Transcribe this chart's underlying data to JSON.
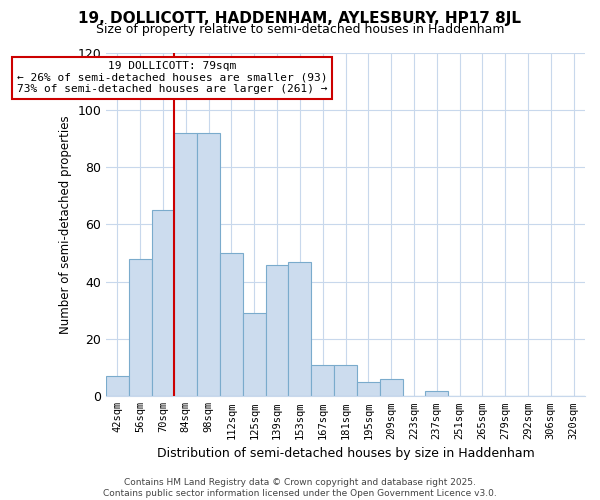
{
  "title": "19, DOLLICOTT, HADDENHAM, AYLESBURY, HP17 8JL",
  "subtitle": "Size of property relative to semi-detached houses in Haddenham",
  "xlabel": "Distribution of semi-detached houses by size in Haddenham",
  "ylabel": "Number of semi-detached properties",
  "categories": [
    "42sqm",
    "56sqm",
    "70sqm",
    "84sqm",
    "98sqm",
    "112sqm",
    "125sqm",
    "139sqm",
    "153sqm",
    "167sqm",
    "181sqm",
    "195sqm",
    "209sqm",
    "223sqm",
    "237sqm",
    "251sqm",
    "265sqm",
    "279sqm",
    "292sqm",
    "306sqm",
    "320sqm"
  ],
  "values": [
    7,
    48,
    65,
    92,
    92,
    50,
    29,
    46,
    47,
    11,
    11,
    5,
    6,
    0,
    2,
    0,
    0,
    0,
    0,
    0,
    0
  ],
  "bar_color": "#ccdcee",
  "bar_edge_color": "#7aabcc",
  "vline_color": "#cc0000",
  "vline_index": 3,
  "annotation_title": "19 DOLLICOTT: 79sqm",
  "annotation_line1": "← 26% of semi-detached houses are smaller (93)",
  "annotation_line2": "73% of semi-detached houses are larger (261) →",
  "annotation_box_color": "#cc0000",
  "ylim": [
    0,
    120
  ],
  "yticks": [
    0,
    20,
    40,
    60,
    80,
    100,
    120
  ],
  "grid_color": "#c8d8ec",
  "bg_color": "#ffffff",
  "footer": "Contains HM Land Registry data © Crown copyright and database right 2025.\nContains public sector information licensed under the Open Government Licence v3.0."
}
